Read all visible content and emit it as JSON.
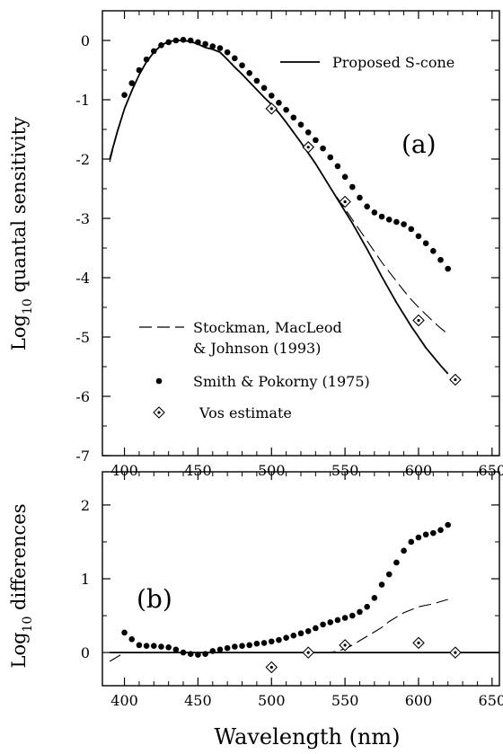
{
  "chart_data": [
    {
      "type": "line",
      "panel_label": "(a)",
      "ylabel_main": "Log",
      "ylabel_sub": "10",
      "ylabel_rest": " quantal sensitivity",
      "xlim": [
        385,
        655
      ],
      "ylim": [
        -7,
        0.5
      ],
      "x_ticks": [
        "400",
        "450",
        "500",
        "550",
        "600",
        "650"
      ],
      "y_ticks": [
        "0",
        "-1",
        "-2",
        "-3",
        "-4",
        "-5",
        "-6",
        "-7"
      ],
      "legend": {
        "proposed": "Proposed S-cone",
        "stockman_1": "Stockman, MacLeod",
        "stockman_2": "& Johnson (1993)",
        "smith": "Smith & Pokorny (1975)",
        "vos": "Vos estimate"
      },
      "series": [
        {
          "key": "proposed",
          "style": "solid",
          "x": [
            390,
            395,
            400,
            405,
            410,
            415,
            420,
            425,
            430,
            435,
            440,
            445,
            450,
            455,
            460,
            465,
            470,
            475,
            480,
            485,
            490,
            495,
            500,
            505,
            510,
            515,
            520,
            525,
            530,
            535,
            540,
            545,
            550,
            555,
            560,
            565,
            570,
            575,
            580,
            585,
            590,
            595,
            600,
            605,
            610,
            615,
            620
          ],
          "y": [
            -2.0,
            -1.55,
            -1.15,
            -0.85,
            -0.58,
            -0.36,
            -0.2,
            -0.08,
            -0.02,
            0.0,
            0.0,
            -0.02,
            -0.06,
            -0.12,
            -0.15,
            -0.2,
            -0.32,
            -0.45,
            -0.57,
            -0.7,
            -0.83,
            -0.96,
            -1.08,
            -1.22,
            -1.38,
            -1.55,
            -1.72,
            -1.9,
            -2.08,
            -2.28,
            -2.48,
            -2.68,
            -2.88,
            -3.08,
            -3.3,
            -3.52,
            -3.75,
            -3.98,
            -4.2,
            -4.42,
            -4.62,
            -4.82,
            -5.0,
            -5.18,
            -5.33,
            -5.48,
            -5.62
          ]
        },
        {
          "key": "stockman",
          "style": "dashed",
          "x": [
            390,
            395,
            400,
            405,
            410,
            415,
            420,
            425,
            430,
            435,
            440,
            445,
            450,
            455,
            460,
            465,
            470,
            475,
            480,
            485,
            490,
            495,
            500,
            505,
            510,
            515,
            520,
            525,
            530,
            535,
            540,
            545,
            550,
            555,
            560,
            565,
            570,
            575,
            580,
            585,
            590,
            595,
            600,
            605,
            610,
            615,
            620
          ],
          "y": [
            -2.05,
            -1.55,
            -1.15,
            -0.85,
            -0.58,
            -0.36,
            -0.2,
            -0.08,
            -0.02,
            0.0,
            0.0,
            -0.02,
            -0.06,
            -0.12,
            -0.15,
            -0.2,
            -0.32,
            -0.45,
            -0.57,
            -0.7,
            -0.83,
            -0.96,
            -1.08,
            -1.22,
            -1.38,
            -1.55,
            -1.72,
            -1.9,
            -2.08,
            -2.28,
            -2.48,
            -2.66,
            -2.84,
            -3.02,
            -3.2,
            -3.38,
            -3.56,
            -3.74,
            -3.9,
            -4.06,
            -4.22,
            -4.37,
            -4.5,
            -4.62,
            -4.74,
            -4.85,
            -4.95
          ]
        },
        {
          "key": "smith",
          "style": "dots",
          "x": [
            400,
            405,
            410,
            415,
            420,
            425,
            430,
            435,
            440,
            445,
            450,
            455,
            460,
            465,
            470,
            475,
            480,
            485,
            490,
            495,
            500,
            505,
            510,
            515,
            520,
            525,
            530,
            535,
            540,
            545,
            550,
            555,
            560,
            565,
            570,
            575,
            580,
            585,
            590,
            595,
            600,
            605,
            610,
            615,
            620
          ],
          "y": [
            -0.92,
            -0.72,
            -0.5,
            -0.32,
            -0.18,
            -0.08,
            -0.03,
            0.0,
            0.01,
            0.0,
            -0.03,
            -0.06,
            -0.1,
            -0.13,
            -0.2,
            -0.3,
            -0.42,
            -0.55,
            -0.68,
            -0.8,
            -0.93,
            -1.05,
            -1.17,
            -1.3,
            -1.42,
            -1.55,
            -1.68,
            -1.82,
            -1.97,
            -2.12,
            -2.3,
            -2.47,
            -2.65,
            -2.8,
            -2.9,
            -2.97,
            -3.02,
            -3.06,
            -3.1,
            -3.18,
            -3.3,
            -3.42,
            -3.55,
            -3.7,
            -3.85
          ]
        },
        {
          "key": "vos",
          "style": "diamond",
          "x": [
            500,
            525,
            550,
            600,
            625
          ],
          "y": [
            -1.15,
            -1.8,
            -2.72,
            -4.72,
            -5.72
          ]
        }
      ]
    },
    {
      "type": "line",
      "panel_label": "(b)",
      "ylabel_main": "Log",
      "ylabel_sub": "10",
      "ylabel_rest": " differences",
      "xlabel": "Wavelength (nm)",
      "xlim": [
        385,
        655
      ],
      "ylim": [
        -0.45,
        2.45
      ],
      "x_ticks": [
        "400",
        "450",
        "500",
        "550",
        "600",
        "650"
      ],
      "y_ticks": [
        "0",
        "1",
        "2"
      ],
      "series": [
        {
          "key": "zero",
          "style": "solid",
          "x": [
            390,
            655
          ],
          "y": [
            0,
            0
          ]
        },
        {
          "key": "stockman_diff",
          "style": "dashed",
          "x": [
            390,
            400,
            410,
            420,
            430,
            440,
            450,
            460,
            470,
            480,
            490,
            500,
            510,
            520,
            530,
            540,
            545,
            550,
            555,
            560,
            565,
            570,
            575,
            580,
            585,
            590,
            595,
            600,
            605,
            610,
            615,
            620
          ],
          "y": [
            -0.12,
            0.0,
            0.0,
            0.0,
            0.0,
            0.0,
            0.0,
            0.0,
            0.0,
            0.0,
            0.0,
            0.0,
            0.0,
            0.0,
            0.0,
            0.0,
            0.02,
            0.05,
            0.1,
            0.16,
            0.22,
            0.28,
            0.34,
            0.42,
            0.48,
            0.54,
            0.58,
            0.62,
            0.64,
            0.66,
            0.69,
            0.72
          ]
        },
        {
          "key": "smith_diff",
          "style": "dots",
          "x": [
            400,
            405,
            410,
            415,
            420,
            425,
            430,
            435,
            440,
            445,
            450,
            455,
            460,
            465,
            470,
            475,
            480,
            485,
            490,
            495,
            500,
            505,
            510,
            515,
            520,
            525,
            530,
            535,
            540,
            545,
            550,
            555,
            560,
            565,
            570,
            575,
            580,
            585,
            590,
            595,
            600,
            605,
            610,
            615,
            620
          ],
          "y": [
            0.27,
            0.18,
            0.1,
            0.09,
            0.09,
            0.08,
            0.07,
            0.04,
            0.0,
            -0.02,
            -0.03,
            -0.02,
            0.02,
            0.04,
            0.06,
            0.08,
            0.09,
            0.1,
            0.12,
            0.13,
            0.15,
            0.17,
            0.2,
            0.23,
            0.26,
            0.29,
            0.33,
            0.38,
            0.41,
            0.44,
            0.47,
            0.5,
            0.55,
            0.62,
            0.74,
            0.92,
            1.06,
            1.22,
            1.38,
            1.5,
            1.56,
            1.6,
            1.62,
            1.66,
            1.73
          ]
        },
        {
          "key": "vos_diff",
          "style": "diamond",
          "x": [
            500,
            525,
            550,
            600,
            625
          ],
          "y": [
            -0.2,
            0.0,
            0.1,
            0.13,
            0.0
          ]
        }
      ]
    }
  ]
}
